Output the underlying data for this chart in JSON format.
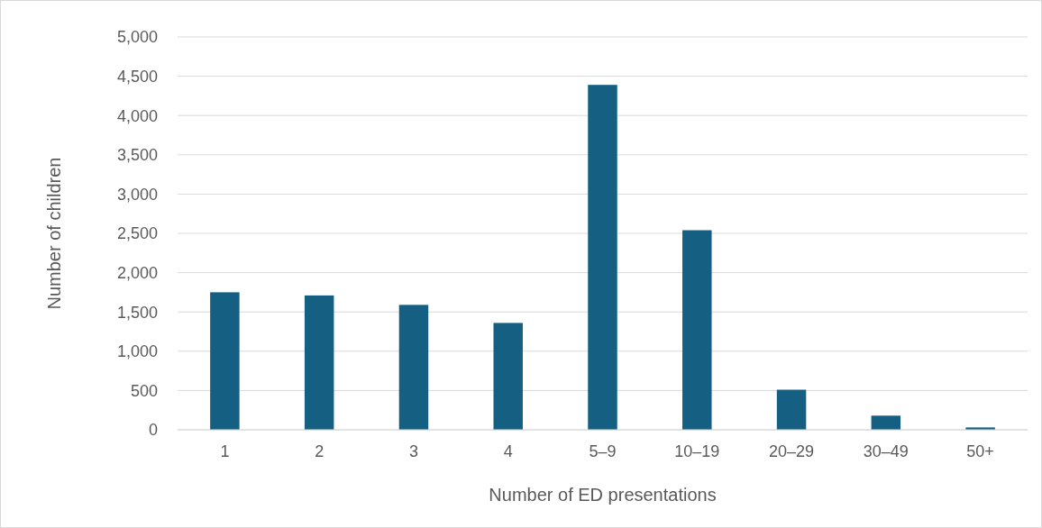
{
  "chart_data": {
    "type": "bar",
    "xlabel": "Number of ED presentations",
    "ylabel": "Number of children",
    "categories": [
      "1",
      "2",
      "3",
      "4",
      "5–9",
      "10–19",
      "20–29",
      "30–49",
      "50+"
    ],
    "values": [
      1750,
      1710,
      1590,
      1360,
      4390,
      2540,
      510,
      180,
      30
    ],
    "color": "#156082",
    "ylim": [
      0,
      5000
    ],
    "yticks": [
      {
        "value": 0,
        "label": "0"
      },
      {
        "value": 500,
        "label": "500"
      },
      {
        "value": 1000,
        "label": "1,000"
      },
      {
        "value": 1500,
        "label": "1,500"
      },
      {
        "value": 2000,
        "label": "2,000"
      },
      {
        "value": 2500,
        "label": "2,500"
      },
      {
        "value": 3000,
        "label": "3,000"
      },
      {
        "value": 3500,
        "label": "3,500"
      },
      {
        "value": 4000,
        "label": "4,000"
      },
      {
        "value": 4500,
        "label": "4,500"
      },
      {
        "value": 5000,
        "label": "5,000"
      }
    ],
    "grid": "y"
  }
}
